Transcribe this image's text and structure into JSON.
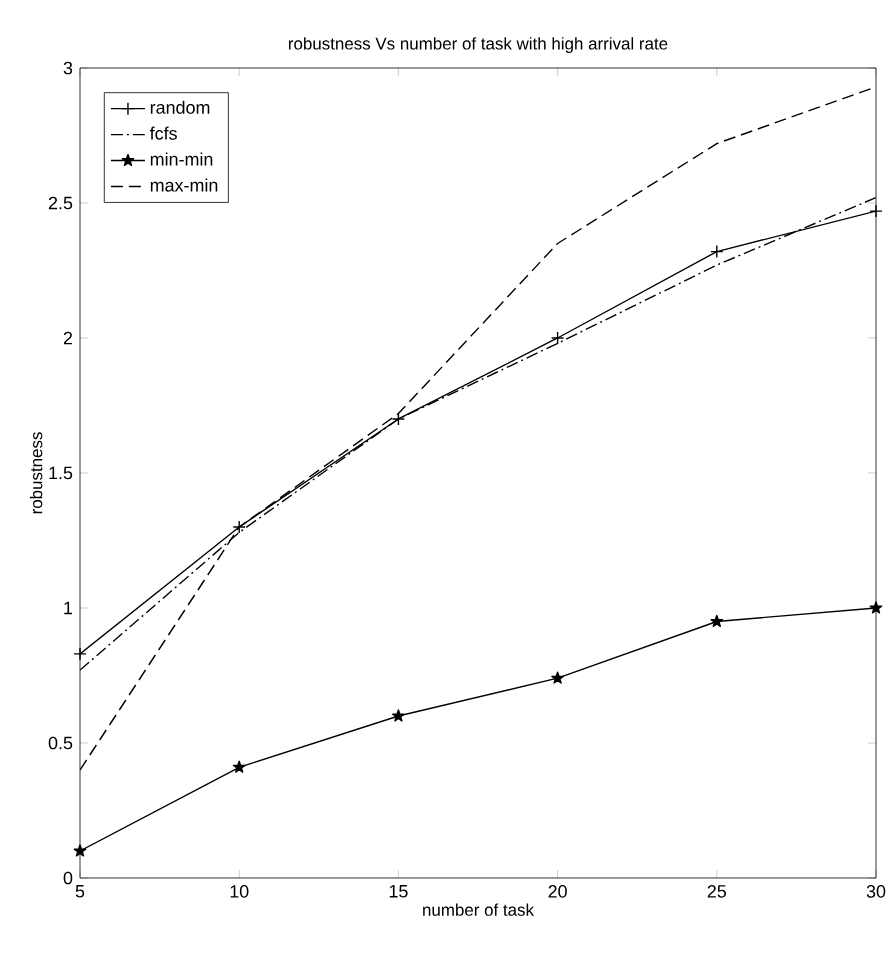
{
  "chart_data": {
    "type": "line",
    "title": "robustness Vs number of task with high arrival rate",
    "xlabel": "number of task",
    "ylabel": "robustness",
    "x": [
      5,
      10,
      15,
      20,
      25,
      30
    ],
    "series": [
      {
        "name": "random",
        "color": "#000000",
        "marker": "cross",
        "line_style": "solid",
        "values": [
          0.83,
          1.3,
          1.7,
          2.0,
          2.32,
          2.47
        ]
      },
      {
        "name": "fcfs",
        "color": "#000000",
        "marker": "none",
        "line_style": "dashdot",
        "values": [
          0.77,
          1.28,
          1.7,
          1.98,
          2.27,
          2.52
        ]
      },
      {
        "name": "min-min",
        "color": "#000000",
        "marker": "star",
        "line_style": "solid",
        "values": [
          0.1,
          0.41,
          0.6,
          0.74,
          0.95,
          1.0
        ]
      },
      {
        "name": "max-min",
        "color": "#000000",
        "marker": "none",
        "line_style": "dashed",
        "values": [
          0.4,
          1.3,
          1.72,
          2.35,
          2.72,
          2.93
        ]
      }
    ],
    "xlim": [
      5,
      30
    ],
    "ylim": [
      0,
      3
    ],
    "xticks": [
      5,
      10,
      15,
      20,
      25,
      30
    ],
    "yticks": [
      0,
      0.5,
      1,
      1.5,
      2,
      2.5,
      3
    ],
    "legend": "top left",
    "grid": false
  }
}
